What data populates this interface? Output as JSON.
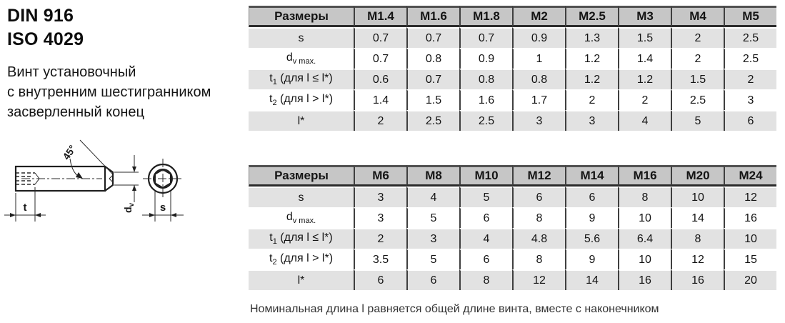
{
  "page": {
    "standard_line1": "DIN 916",
    "standard_line2": "ISO 4029",
    "description_lines": [
      "Винт установочный",
      "с внутренним шестигранником",
      "засверленный конец"
    ],
    "footnote": "Номинальная длина l равняется общей длине винта, вместе с наконечником"
  },
  "drawing": {
    "angle_label": "45°",
    "t_label": "t",
    "dv_base": "d",
    "dv_sub": "v",
    "s_label": "s"
  },
  "colors": {
    "header_bg": "#c6c6c6",
    "row_alt_bg": "#e2e2e2",
    "row_bg": "#ffffff",
    "column_line": "#3f3f3f",
    "header_top_border": "#515151",
    "header_bottom_border": "#2b2b2b",
    "text": "#141414"
  },
  "tables": [
    {
      "header": [
        "Размеры",
        "M1.4",
        "M1.6",
        "M1.8",
        "M2",
        "M2.5",
        "M3",
        "M4",
        "M5"
      ],
      "rows": [
        {
          "label": {
            "pre": "s",
            "sub": "",
            "post": ""
          },
          "values": [
            "0.7",
            "0.7",
            "0.7",
            "0.9",
            "1.3",
            "1.5",
            "2",
            "2.5"
          ]
        },
        {
          "label": {
            "pre": "d",
            "sub": "v max.",
            "post": ""
          },
          "values": [
            "0.7",
            "0.8",
            "0.9",
            "1",
            "1.2",
            "1.4",
            "2",
            "2.5"
          ]
        },
        {
          "label": {
            "pre": "t",
            "sub": "1",
            "post": " (для l ≤ l*)"
          },
          "values": [
            "0.6",
            "0.7",
            "0.8",
            "0.8",
            "1.2",
            "1.2",
            "1.5",
            "2"
          ]
        },
        {
          "label": {
            "pre": "t",
            "sub": "2",
            "post": " (для l > l*)"
          },
          "values": [
            "1.4",
            "1.5",
            "1.6",
            "1.7",
            "2",
            "2",
            "2.5",
            "3"
          ]
        },
        {
          "label": {
            "pre": "l*",
            "sub": "",
            "post": ""
          },
          "values": [
            "2",
            "2.5",
            "2.5",
            "3",
            "3",
            "4",
            "5",
            "6"
          ]
        }
      ]
    },
    {
      "header": [
        "Размеры",
        "M6",
        "M8",
        "M10",
        "M12",
        "M14",
        "M16",
        "M20",
        "M24"
      ],
      "rows": [
        {
          "label": {
            "pre": "s",
            "sub": "",
            "post": ""
          },
          "values": [
            "3",
            "4",
            "5",
            "6",
            "6",
            "8",
            "10",
            "12"
          ]
        },
        {
          "label": {
            "pre": "d",
            "sub": "v max.",
            "post": ""
          },
          "values": [
            "3",
            "5",
            "6",
            "8",
            "9",
            "10",
            "14",
            "16"
          ]
        },
        {
          "label": {
            "pre": "t",
            "sub": "1",
            "post": " (для l ≤ l*)"
          },
          "values": [
            "2",
            "3",
            "4",
            "4.8",
            "5.6",
            "6.4",
            "8",
            "10"
          ]
        },
        {
          "label": {
            "pre": "t",
            "sub": "2",
            "post": " (для l > l*)"
          },
          "values": [
            "3.5",
            "5",
            "6",
            "8",
            "9",
            "10",
            "12",
            "15"
          ]
        },
        {
          "label": {
            "pre": "l*",
            "sub": "",
            "post": ""
          },
          "values": [
            "6",
            "6",
            "8",
            "12",
            "14",
            "16",
            "16",
            "20"
          ]
        }
      ]
    }
  ]
}
